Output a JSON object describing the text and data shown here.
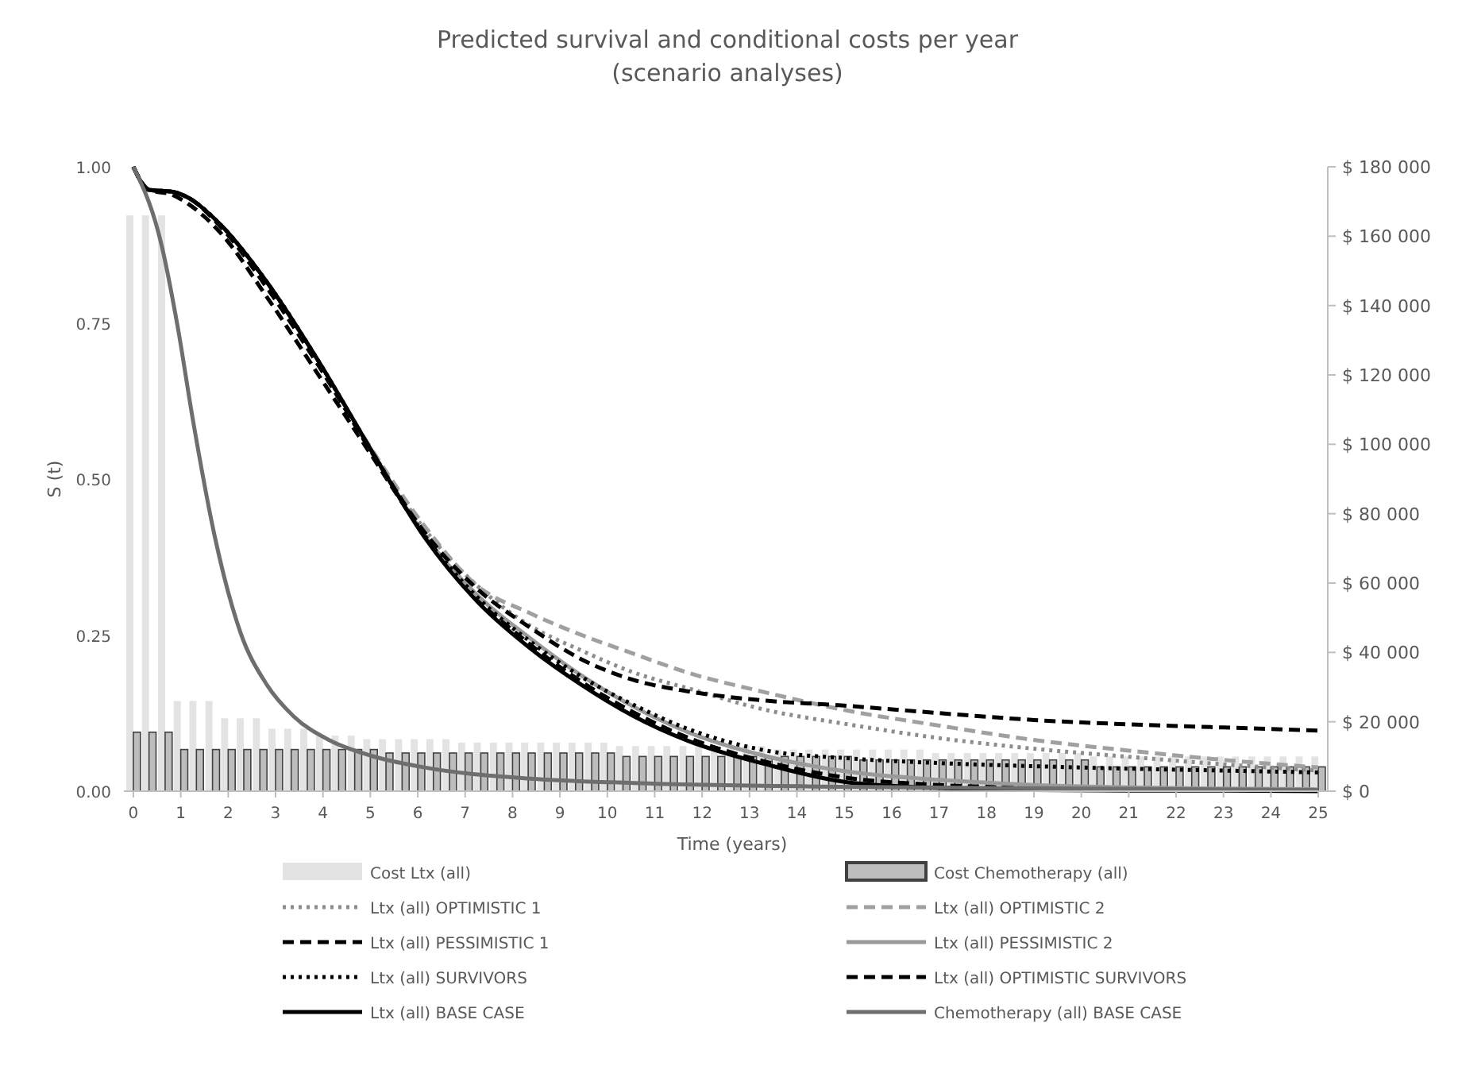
{
  "chart_data": {
    "type": "line",
    "title": "Predicted survival and conditional costs per year",
    "subtitle": "(scenario analyses)",
    "xlabel": "Time (years)",
    "ylabel": "S (t)",
    "xlim": [
      -0.2,
      25.2
    ],
    "xticks": [
      0,
      1,
      2,
      3,
      4,
      5,
      6,
      7,
      8,
      9,
      10,
      11,
      12,
      13,
      14,
      15,
      16,
      17,
      18,
      19,
      20,
      21,
      22,
      23,
      24,
      25
    ],
    "ylim": [
      0,
      1
    ],
    "yticks": [
      {
        "value": 0,
        "label": "0.00"
      },
      {
        "value": 0.25,
        "label": "0.25"
      },
      {
        "value": 0.5,
        "label": "0.50"
      },
      {
        "value": 0.75,
        "label": "0.75"
      },
      {
        "value": 1,
        "label": "1.00"
      }
    ],
    "y2lim": [
      0,
      180000
    ],
    "y2ticks": [
      {
        "value": 0,
        "label": "$ 0"
      },
      {
        "value": 20000,
        "label": "$ 20 000"
      },
      {
        "value": 40000,
        "label": "$ 40 000"
      },
      {
        "value": 60000,
        "label": "$ 60 000"
      },
      {
        "value": 80000,
        "label": "$ 80 000"
      },
      {
        "value": 100000,
        "label": "$ 100 000"
      },
      {
        "value": 120000,
        "label": "$ 120 000"
      },
      {
        "value": 140000,
        "label": "$ 140 000"
      },
      {
        "value": 160000,
        "label": "$ 160 000"
      },
      {
        "value": 180000,
        "label": "$ 180 000"
      }
    ],
    "grid": false,
    "legend": "bottom",
    "marker": "none",
    "x": [
      0,
      0.33,
      0.67,
      1,
      1.33,
      1.67,
      2,
      2.33,
      2.67,
      3,
      3.33,
      3.67,
      4,
      4.33,
      4.67,
      5,
      5.33,
      5.67,
      6,
      6.33,
      6.67,
      7,
      7.33,
      7.67,
      8,
      8.33,
      8.67,
      9,
      9.33,
      9.67,
      10,
      10.33,
      10.67,
      11,
      11.33,
      11.67,
      12,
      12.33,
      12.67,
      13,
      13.33,
      13.67,
      14,
      14.33,
      14.67,
      15,
      15.33,
      15.67,
      16,
      16.33,
      16.67,
      17,
      17.33,
      17.67,
      18,
      18.33,
      18.67,
      19,
      19.33,
      19.67,
      20,
      20.33,
      20.67,
      21,
      21.33,
      21.67,
      22,
      22.33,
      22.67,
      23,
      23.33,
      23.67,
      24,
      24.33,
      24.67,
      25
    ],
    "series": [
      {
        "name": "Cost Ltx (all)",
        "type": "bar",
        "axis": "y2",
        "color": "#e3e3e3",
        "values": [
          166000,
          166000,
          166000,
          26000,
          26000,
          26000,
          21000,
          21000,
          21000,
          18000,
          18000,
          18000,
          16000,
          16000,
          16000,
          15000,
          15000,
          15000,
          15000,
          15000,
          15000,
          14000,
          14000,
          14000,
          14000,
          14000,
          14000,
          14000,
          14000,
          14000,
          14000,
          13000,
          13000,
          13000,
          13000,
          13000,
          13000,
          13000,
          13000,
          13000,
          13000,
          12000,
          12000,
          12000,
          12000,
          12000,
          12000,
          12000,
          12000,
          12000,
          12000,
          11000,
          11000,
          11000,
          11000,
          11000,
          11000,
          11000,
          11000,
          11000,
          11000,
          10000,
          10000,
          10000,
          10000,
          10000,
          10000,
          10000,
          10000,
          10000,
          10000,
          10000,
          10000,
          10000,
          10000,
          10000
        ]
      },
      {
        "name": "Cost Chemotherapy (all)",
        "type": "bar",
        "axis": "y2",
        "color": "#bdbdbd",
        "values": [
          17000,
          17000,
          17000,
          12000,
          12000,
          12000,
          12000,
          12000,
          12000,
          12000,
          12000,
          12000,
          12000,
          12000,
          12000,
          12000,
          11000,
          11000,
          11000,
          11000,
          11000,
          11000,
          11000,
          11000,
          11000,
          11000,
          11000,
          11000,
          11000,
          11000,
          11000,
          10000,
          10000,
          10000,
          10000,
          10000,
          10000,
          10000,
          10000,
          10000,
          10000,
          10000,
          10000,
          10000,
          10000,
          10000,
          9000,
          9000,
          9000,
          9000,
          9000,
          9000,
          9000,
          9000,
          9000,
          9000,
          9000,
          9000,
          9000,
          9000,
          9000,
          7000,
          7000,
          7000,
          7000,
          7000,
          7000,
          7000,
          7000,
          7000,
          7000,
          7000,
          7000,
          7000,
          7000,
          7000
        ]
      },
      {
        "name": "Ltx (all) OPTIMISTIC 1",
        "color": "#8c8c8c",
        "line_style": "dotted",
        "x": [
          0,
          0.33,
          0.83,
          1.17,
          1.83,
          2.83,
          3.92,
          5.05,
          6.14,
          7.24,
          8.37,
          9.46,
          10.56,
          11.69,
          13.35,
          15,
          17,
          19,
          21,
          23,
          25
        ],
        "values": [
          1,
          0.963,
          0.96,
          0.95,
          0.908,
          0.814,
          0.687,
          0.542,
          0.42,
          0.33,
          0.265,
          0.225,
          0.19,
          0.165,
          0.13,
          0.108,
          0.085,
          0.068,
          0.055,
          0.043,
          0.033
        ]
      },
      {
        "name": "Ltx (all) OPTIMISTIC 2",
        "color": "#a0a0a0",
        "line_style": "dashed",
        "x": [
          0,
          0.33,
          0.83,
          1.17,
          1.83,
          2.83,
          3.92,
          5.05,
          6.14,
          7.24,
          8.37,
          9.46,
          10.56,
          11.69,
          13.35,
          15,
          17,
          19,
          21,
          23,
          25
        ],
        "values": [
          1,
          0.963,
          0.96,
          0.95,
          0.905,
          0.81,
          0.685,
          0.545,
          0.425,
          0.33,
          0.285,
          0.25,
          0.22,
          0.19,
          0.158,
          0.13,
          0.105,
          0.082,
          0.065,
          0.05,
          0.038
        ]
      },
      {
        "name": "Ltx (all) PESSIMISTIC 1",
        "color": "#000000",
        "line_style": "dashed",
        "x": [
          0,
          0.33,
          0.83,
          1.17,
          1.83,
          2.83,
          3.92,
          5.05,
          6.14,
          7.24,
          8.37,
          9.46,
          10.56,
          11.69,
          13.35,
          15,
          17,
          19,
          21,
          23,
          25
        ],
        "values": [
          1,
          0.963,
          0.955,
          0.94,
          0.895,
          0.79,
          0.665,
          0.535,
          0.41,
          0.31,
          0.235,
          0.175,
          0.126,
          0.086,
          0.047,
          0.022,
          0.01,
          0.005,
          0.003,
          0.002,
          0.001
        ]
      },
      {
        "name": "Ltx (all) PESSIMISTIC 2",
        "color": "#9a9a9a",
        "line_style": "solid",
        "x": [
          0,
          0.33,
          0.83,
          1.17,
          1.83,
          2.83,
          3.92,
          5.05,
          6.14,
          7.24,
          8.37,
          9.46,
          10.56,
          11.69,
          13.35,
          15,
          17,
          19,
          21,
          23,
          25
        ],
        "values": [
          1,
          0.963,
          0.96,
          0.95,
          0.908,
          0.814,
          0.687,
          0.542,
          0.41,
          0.315,
          0.245,
          0.185,
          0.135,
          0.095,
          0.056,
          0.032,
          0.018,
          0.01,
          0.006,
          0.004,
          0.003
        ]
      },
      {
        "name": "Ltx (all) SURVIVORS",
        "color": "#000000",
        "line_style": "dotted",
        "x": [
          0,
          0.33,
          0.83,
          1.17,
          1.83,
          2.83,
          3.92,
          5.05,
          6.14,
          7.24,
          8.37,
          9.46,
          10.56,
          11.69,
          13.35,
          15,
          17,
          19,
          21,
          23,
          25
        ],
        "values": [
          1,
          0.963,
          0.96,
          0.95,
          0.908,
          0.814,
          0.687,
          0.542,
          0.41,
          0.312,
          0.24,
          0.183,
          0.138,
          0.1,
          0.065,
          0.053,
          0.045,
          0.04,
          0.036,
          0.033,
          0.03
        ]
      },
      {
        "name": "Ltx (all) OPTIMISTIC SURVIVORS",
        "color": "#000000",
        "line_style": "dashed",
        "x": [
          0,
          0.33,
          0.83,
          1.17,
          1.83,
          2.83,
          3.92,
          5.05,
          6.14,
          7.24,
          8.37,
          9.46,
          10.56,
          11.69,
          13.35,
          15,
          17,
          19,
          21,
          23,
          25
        ],
        "values": [
          1,
          0.963,
          0.96,
          0.95,
          0.905,
          0.805,
          0.68,
          0.54,
          0.415,
          0.325,
          0.262,
          0.211,
          0.178,
          0.16,
          0.145,
          0.137,
          0.125,
          0.114,
          0.107,
          0.102,
          0.097
        ]
      },
      {
        "name": "Ltx (all) BASE CASE",
        "color": "#000000",
        "line_style": "solid",
        "x": [
          0,
          0.33,
          0.83,
          1.17,
          1.83,
          2.83,
          3.92,
          5.05,
          6.14,
          7.24,
          8.37,
          9.46,
          10.56,
          11.69,
          13.35,
          15,
          17,
          19,
          21,
          23,
          25
        ],
        "values": [
          1,
          0.963,
          0.96,
          0.95,
          0.908,
          0.814,
          0.687,
          0.542,
          0.407,
          0.305,
          0.229,
          0.17,
          0.12,
          0.081,
          0.043,
          0.015,
          0.005,
          0.002,
          0.001,
          0.001,
          0
        ]
      },
      {
        "name": "Chemotherapy (all) BASE CASE",
        "color": "#6e6e6e",
        "line_style": "solid",
        "x": [
          0,
          0.6,
          0.93,
          1.26,
          1.72,
          2.26,
          2.82,
          3.38,
          4.15,
          5.05,
          6.14,
          8.37,
          10.56,
          15,
          20,
          25
        ],
        "values": [
          1,
          0.873,
          0.746,
          0.593,
          0.407,
          0.254,
          0.17,
          0.12,
          0.081,
          0.056,
          0.038,
          0.02,
          0.013,
          0.007,
          0.004,
          0.002
        ]
      }
    ]
  }
}
